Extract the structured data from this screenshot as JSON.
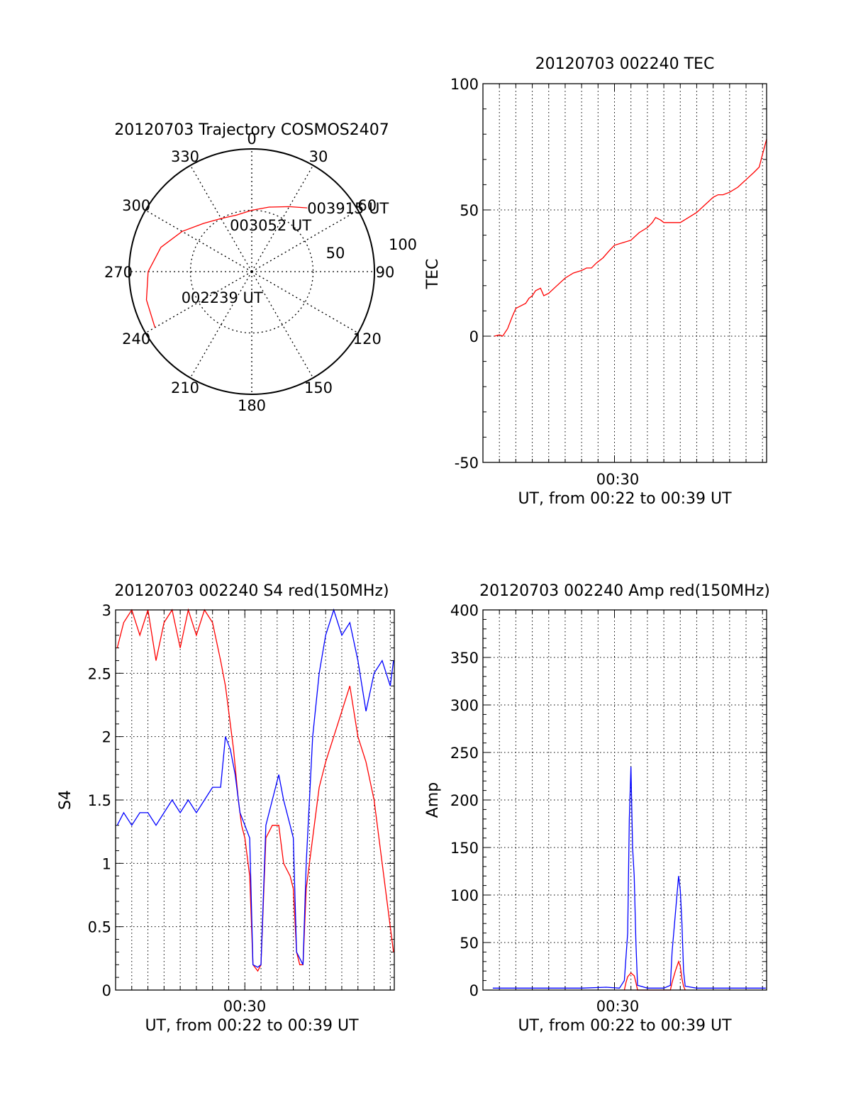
{
  "colors": {
    "red": "#ff0000",
    "blue": "#0000ff",
    "axis": "#000000",
    "grid": "#000000"
  },
  "chart_data": [
    {
      "type": "polar",
      "title": "20120703 Trajectory COSMOS2407",
      "azimuth_labels": [
        "0",
        "30",
        "60",
        "90",
        "120",
        "150",
        "180",
        "210",
        "240",
        "270",
        "300",
        "330"
      ],
      "ring_labels": [
        "50",
        "100"
      ],
      "trajectory": [
        {
          "azimuth": 240,
          "elevation": 8
        },
        {
          "azimuth": 255,
          "elevation": 10
        },
        {
          "azimuth": 270,
          "elevation": 14
        },
        {
          "azimuth": 285,
          "elevation": 21
        },
        {
          "azimuth": 300,
          "elevation": 31
        },
        {
          "azimuth": 315,
          "elevation": 40
        },
        {
          "azimuth": 330,
          "elevation": 45
        },
        {
          "azimuth": 345,
          "elevation": 47
        },
        {
          "azimuth": 0,
          "elevation": 45
        },
        {
          "azimuth": 15,
          "elevation": 41
        },
        {
          "azimuth": 30,
          "elevation": 35
        },
        {
          "azimuth": 41,
          "elevation": 28
        }
      ],
      "annotations": [
        {
          "text": "003915 UT",
          "azimuth": 41,
          "elevation": 28
        },
        {
          "text": "003052 UT",
          "azimuth": 22,
          "elevation": 53
        },
        {
          "text": "002239 UT",
          "azimuth": 250,
          "elevation": 35
        }
      ]
    },
    {
      "type": "line",
      "title": "20120703 002240 TEC",
      "xlabel": "UT, from 00:22 to 00:39 UT",
      "ylabel": "TEC",
      "x_tick_label": "00:30",
      "x_tick_minute": 30,
      "xlim_minutes": [
        22.0,
        39.25
      ],
      "ylim": [
        -50,
        100
      ],
      "y_ticks": [
        -50,
        0,
        50,
        100
      ],
      "series": [
        {
          "color": "red",
          "points": [
            [
              22.7,
              0
            ],
            [
              23.0,
              0.5
            ],
            [
              23.2,
              0
            ],
            [
              23.5,
              3
            ],
            [
              23.8,
              8
            ],
            [
              24.0,
              11
            ],
            [
              24.3,
              12
            ],
            [
              24.6,
              13
            ],
            [
              24.8,
              15
            ],
            [
              25.0,
              16
            ],
            [
              25.2,
              18
            ],
            [
              25.5,
              19
            ],
            [
              25.7,
              16
            ],
            [
              26.0,
              17
            ],
            [
              26.5,
              20
            ],
            [
              27.0,
              23
            ],
            [
              27.5,
              25
            ],
            [
              28.0,
              26
            ],
            [
              28.3,
              27
            ],
            [
              28.6,
              27
            ],
            [
              28.9,
              29
            ],
            [
              29.3,
              31
            ],
            [
              29.7,
              34
            ],
            [
              30.0,
              36
            ],
            [
              30.5,
              37
            ],
            [
              31.0,
              38
            ],
            [
              31.5,
              41
            ],
            [
              32.0,
              43
            ],
            [
              32.3,
              45
            ],
            [
              32.5,
              47
            ],
            [
              32.8,
              46
            ],
            [
              33.0,
              45
            ],
            [
              33.5,
              45
            ],
            [
              34.0,
              45
            ],
            [
              34.5,
              47
            ],
            [
              35.0,
              49
            ],
            [
              35.5,
              52
            ],
            [
              36.0,
              55
            ],
            [
              36.3,
              56
            ],
            [
              36.6,
              56
            ],
            [
              37.0,
              57
            ],
            [
              37.5,
              59
            ],
            [
              38.0,
              62
            ],
            [
              38.5,
              65
            ],
            [
              38.8,
              67
            ],
            [
              39.0,
              72
            ],
            [
              39.25,
              78
            ]
          ]
        }
      ]
    },
    {
      "type": "line",
      "title": "20120703 002240 S4 red(150MHz)",
      "xlabel": "UT, from 00:22 to 00:39 UT",
      "ylabel": "S4",
      "x_tick_label": "00:30",
      "x_tick_minute": 30,
      "xlim_minutes": [
        22.0,
        39.25
      ],
      "ylim": [
        0,
        3
      ],
      "y_ticks": [
        0,
        0.5,
        1,
        1.5,
        2,
        2.5,
        3
      ],
      "y_tick_labels": [
        "0",
        "0.5",
        "1",
        "1.5",
        "2",
        "2.5",
        "3"
      ],
      "series": [
        {
          "color": "red",
          "points": [
            [
              22.1,
              2.7
            ],
            [
              22.5,
              2.9
            ],
            [
              23.0,
              3.0
            ],
            [
              23.5,
              2.8
            ],
            [
              24.0,
              3.0
            ],
            [
              24.5,
              2.6
            ],
            [
              25.0,
              2.9
            ],
            [
              25.5,
              3.0
            ],
            [
              26.0,
              2.7
            ],
            [
              26.5,
              3.0
            ],
            [
              27.0,
              2.8
            ],
            [
              27.5,
              3.0
            ],
            [
              28.0,
              2.9
            ],
            [
              28.5,
              2.6
            ],
            [
              28.8,
              2.4
            ],
            [
              29.0,
              2.2
            ],
            [
              29.3,
              1.9
            ],
            [
              29.6,
              1.5
            ],
            [
              29.8,
              1.3
            ],
            [
              30.0,
              1.2
            ],
            [
              30.3,
              0.9
            ],
            [
              30.5,
              0.2
            ],
            [
              30.8,
              0.15
            ],
            [
              31.0,
              0.2
            ],
            [
              31.3,
              1.2
            ],
            [
              31.7,
              1.3
            ],
            [
              32.1,
              1.3
            ],
            [
              32.4,
              1.0
            ],
            [
              32.8,
              0.9
            ],
            [
              33.0,
              0.8
            ],
            [
              33.2,
              0.3
            ],
            [
              33.4,
              0.2
            ],
            [
              33.6,
              0.2
            ],
            [
              33.8,
              0.8
            ],
            [
              34.2,
              1.2
            ],
            [
              34.6,
              1.6
            ],
            [
              35.0,
              1.8
            ],
            [
              35.5,
              2.0
            ],
            [
              36.0,
              2.2
            ],
            [
              36.5,
              2.4
            ],
            [
              37.0,
              2.0
            ],
            [
              37.5,
              1.8
            ],
            [
              38.0,
              1.5
            ],
            [
              38.5,
              1.0
            ],
            [
              39.0,
              0.5
            ],
            [
              39.2,
              0.3
            ]
          ]
        },
        {
          "color": "blue",
          "points": [
            [
              22.1,
              1.3
            ],
            [
              22.5,
              1.4
            ],
            [
              23.0,
              1.3
            ],
            [
              23.5,
              1.4
            ],
            [
              24.0,
              1.4
            ],
            [
              24.5,
              1.3
            ],
            [
              25.0,
              1.4
            ],
            [
              25.5,
              1.5
            ],
            [
              26.0,
              1.4
            ],
            [
              26.5,
              1.5
            ],
            [
              27.0,
              1.4
            ],
            [
              27.5,
              1.5
            ],
            [
              28.0,
              1.6
            ],
            [
              28.5,
              1.6
            ],
            [
              28.8,
              2.0
            ],
            [
              29.1,
              1.9
            ],
            [
              29.4,
              1.7
            ],
            [
              29.7,
              1.4
            ],
            [
              30.0,
              1.3
            ],
            [
              30.3,
              1.2
            ],
            [
              30.5,
              0.2
            ],
            [
              30.8,
              0.18
            ],
            [
              31.0,
              0.2
            ],
            [
              31.3,
              1.3
            ],
            [
              31.7,
              1.5
            ],
            [
              32.1,
              1.7
            ],
            [
              32.4,
              1.5
            ],
            [
              32.8,
              1.3
            ],
            [
              33.0,
              1.2
            ],
            [
              33.2,
              0.3
            ],
            [
              33.4,
              0.25
            ],
            [
              33.6,
              0.2
            ],
            [
              33.8,
              1.0
            ],
            [
              34.2,
              2.0
            ],
            [
              34.6,
              2.5
            ],
            [
              35.0,
              2.8
            ],
            [
              35.5,
              3.0
            ],
            [
              36.0,
              2.8
            ],
            [
              36.5,
              2.9
            ],
            [
              37.0,
              2.6
            ],
            [
              37.5,
              2.2
            ],
            [
              38.0,
              2.5
            ],
            [
              38.5,
              2.6
            ],
            [
              39.0,
              2.4
            ],
            [
              39.2,
              2.6
            ]
          ]
        }
      ]
    },
    {
      "type": "line",
      "title": "20120703 002240 Amp red(150MHz)",
      "xlabel": "UT, from 00:22 to 00:39 UT",
      "ylabel": "Amp",
      "x_tick_label": "00:30",
      "x_tick_minute": 30,
      "xlim_minutes": [
        22.0,
        39.25
      ],
      "ylim": [
        0,
        400
      ],
      "y_ticks": [
        0,
        50,
        100,
        150,
        200,
        250,
        300,
        350,
        400
      ],
      "series": [
        {
          "color": "blue",
          "points": [
            [
              22.6,
              2
            ],
            [
              24.0,
              2
            ],
            [
              26.0,
              2
            ],
            [
              28.0,
              2
            ],
            [
              29.5,
              3
            ],
            [
              30.3,
              2
            ],
            [
              30.6,
              10
            ],
            [
              30.8,
              60
            ],
            [
              30.9,
              180
            ],
            [
              31.0,
              235
            ],
            [
              31.1,
              150
            ],
            [
              31.2,
              120
            ],
            [
              31.3,
              50
            ],
            [
              31.4,
              5
            ],
            [
              32.0,
              2
            ],
            [
              33.0,
              2
            ],
            [
              33.4,
              5
            ],
            [
              33.5,
              40
            ],
            [
              33.7,
              80
            ],
            [
              33.8,
              100
            ],
            [
              33.9,
              120
            ],
            [
              34.0,
              105
            ],
            [
              34.1,
              70
            ],
            [
              34.2,
              20
            ],
            [
              34.3,
              4
            ],
            [
              35.0,
              2
            ],
            [
              36.0,
              2
            ],
            [
              37.0,
              2
            ],
            [
              38.0,
              2
            ],
            [
              39.2,
              2
            ]
          ]
        },
        {
          "color": "red",
          "points": [
            [
              30.6,
              0
            ],
            [
              30.7,
              8
            ],
            [
              30.8,
              14
            ],
            [
              31.0,
              18
            ],
            [
              31.2,
              15
            ],
            [
              31.3,
              8
            ],
            [
              31.4,
              0
            ],
            [
              33.4,
              0
            ],
            [
              33.5,
              8
            ],
            [
              33.7,
              20
            ],
            [
              33.9,
              30
            ],
            [
              34.0,
              25
            ],
            [
              34.1,
              12
            ],
            [
              34.2,
              4
            ],
            [
              34.3,
              0
            ]
          ]
        }
      ]
    }
  ]
}
